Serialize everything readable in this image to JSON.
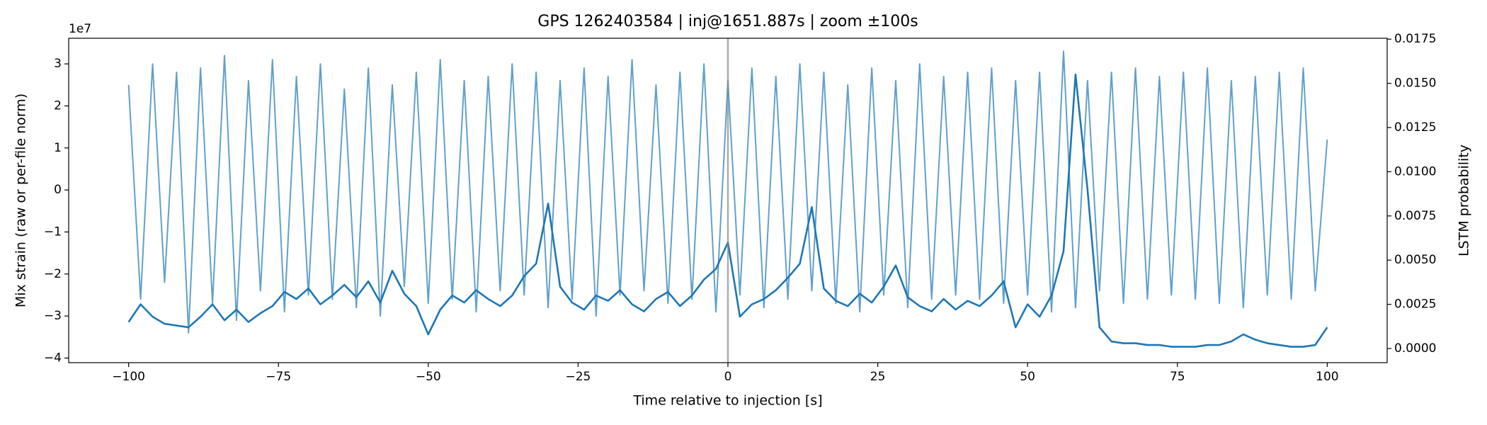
{
  "chart_data": {
    "type": "line",
    "title": "GPS 1262403584 | inj@1651.887s | zoom ±100s",
    "x_label": "Time relative to injection [s]",
    "y_label": "Mix strain (raw or per-file norm)",
    "y2_label": "LSTM probability",
    "y_offset_label": "1e7",
    "vline_x": 0,
    "vline_color": "#888888",
    "xlim": [
      -110,
      110
    ],
    "xticks": [
      {
        "value": -100,
        "label": "−100"
      },
      {
        "value": -75,
        "label": "−75"
      },
      {
        "value": -50,
        "label": "−50"
      },
      {
        "value": -25,
        "label": "−25"
      },
      0,
      25,
      50,
      75,
      100
    ],
    "ylim": [
      -4.11,
      3.61
    ],
    "yticks": [
      {
        "value": -4,
        "label": "−4"
      },
      {
        "value": -3,
        "label": "−3"
      },
      {
        "value": -2,
        "label": "−2"
      },
      {
        "value": -1,
        "label": "−1"
      },
      0,
      1,
      2,
      3
    ],
    "y2lim": [
      -0.0008,
      0.01755
    ],
    "y2ticks": [
      {
        "value": 0,
        "label": "0.0000"
      },
      {
        "value": 0.0025,
        "label": "0.0025"
      },
      {
        "value": 0.005,
        "label": "0.0050"
      },
      {
        "value": 0.0075,
        "label": "0.0075"
      },
      {
        "value": 0.01,
        "label": "0.0100"
      },
      {
        "value": 0.0125,
        "label": "0.0125"
      },
      {
        "value": 0.015,
        "label": "0.0150"
      },
      {
        "value": 0.0175,
        "label": "0.0175"
      }
    ],
    "grid": false,
    "x": [
      -100,
      -98,
      -96,
      -94,
      -92,
      -90,
      -88,
      -86,
      -84,
      -82,
      -80,
      -78,
      -76,
      -74,
      -72,
      -70,
      -68,
      -66,
      -64,
      -62,
      -60,
      -58,
      -56,
      -54,
      -52,
      -50,
      -48,
      -46,
      -44,
      -42,
      -40,
      -38,
      -36,
      -34,
      -32,
      -30,
      -28,
      -26,
      -24,
      -22,
      -20,
      -18,
      -16,
      -14,
      -12,
      -10,
      -8,
      -6,
      -4,
      -2,
      0,
      2,
      4,
      6,
      8,
      10,
      12,
      14,
      16,
      18,
      20,
      22,
      24,
      26,
      28,
      30,
      32,
      34,
      36,
      38,
      40,
      42,
      44,
      46,
      48,
      50,
      52,
      54,
      56,
      58,
      60,
      62,
      64,
      66,
      68,
      70,
      72,
      74,
      76,
      78,
      80,
      82,
      84,
      86,
      88,
      90,
      92,
      94,
      96,
      98,
      100
    ],
    "series": [
      {
        "color": "#1f77b4",
        "alpha": 0.7,
        "values": [
          2.5,
          -2.6,
          3.0,
          -2.2,
          2.8,
          -3.4,
          2.9,
          -2.7,
          3.2,
          -3.1,
          2.6,
          -2.4,
          3.1,
          -2.9,
          2.7,
          -2.5,
          3.0,
          -2.6,
          2.4,
          -2.8,
          2.9,
          -3.0,
          2.5,
          -2.3,
          2.8,
          -2.7,
          3.1,
          -2.6,
          2.6,
          -2.9,
          2.7,
          -2.4,
          3.0,
          -2.5,
          2.8,
          -2.8,
          2.6,
          -2.6,
          2.9,
          -3.0,
          2.7,
          -2.5,
          3.1,
          -2.4,
          2.5,
          -2.7,
          2.8,
          -2.6,
          3.0,
          -2.9,
          2.6,
          -2.5,
          2.9,
          -2.8,
          2.7,
          -2.6,
          3.0,
          -2.4,
          2.8,
          -2.7,
          2.5,
          -2.9,
          2.9,
          -2.5,
          2.6,
          -2.8,
          3.0,
          -2.6,
          2.7,
          -2.5,
          2.8,
          -2.6,
          2.9,
          -2.7,
          2.6,
          -2.5,
          2.8,
          -2.9,
          3.3,
          -2.8,
          2.6,
          -2.4,
          2.8,
          -2.7,
          2.9,
          -2.6,
          2.7,
          -2.5,
          2.8,
          -2.6,
          2.9,
          -2.7,
          2.6,
          -2.8,
          2.7,
          -2.5,
          2.8,
          -2.6,
          2.9,
          -2.4,
          1.2
        ]
      },
      {
        "color": "#1f77b4",
        "axis": "y2",
        "values": [
          0.0015,
          0.0025,
          0.0018,
          0.0014,
          0.0013,
          0.0012,
          0.0018,
          0.0025,
          0.0016,
          0.0022,
          0.0015,
          0.002,
          0.0024,
          0.0032,
          0.0028,
          0.0034,
          0.0025,
          0.003,
          0.0036,
          0.0029,
          0.0038,
          0.0026,
          0.0044,
          0.0031,
          0.0024,
          0.0008,
          0.0022,
          0.003,
          0.0026,
          0.0033,
          0.0028,
          0.0024,
          0.003,
          0.0041,
          0.0048,
          0.0082,
          0.0035,
          0.0026,
          0.0022,
          0.003,
          0.0027,
          0.0033,
          0.0025,
          0.0021,
          0.0028,
          0.0032,
          0.0024,
          0.003,
          0.0039,
          0.0045,
          0.006,
          0.0018,
          0.0025,
          0.0028,
          0.0033,
          0.004,
          0.0048,
          0.008,
          0.0034,
          0.0027,
          0.0024,
          0.0031,
          0.0026,
          0.0035,
          0.0047,
          0.0029,
          0.0024,
          0.0021,
          0.0028,
          0.0022,
          0.0027,
          0.0024,
          0.003,
          0.0038,
          0.0012,
          0.0025,
          0.0018,
          0.003,
          0.0055,
          0.0155,
          0.009,
          0.0012,
          0.0004,
          0.0003,
          0.0003,
          0.0002,
          0.0002,
          0.0001,
          0.0001,
          0.0001,
          0.0002,
          0.0002,
          0.0004,
          0.0008,
          0.0005,
          0.0003,
          0.0002,
          0.0001,
          0.0001,
          0.0002,
          0.0012
        ]
      }
    ]
  }
}
